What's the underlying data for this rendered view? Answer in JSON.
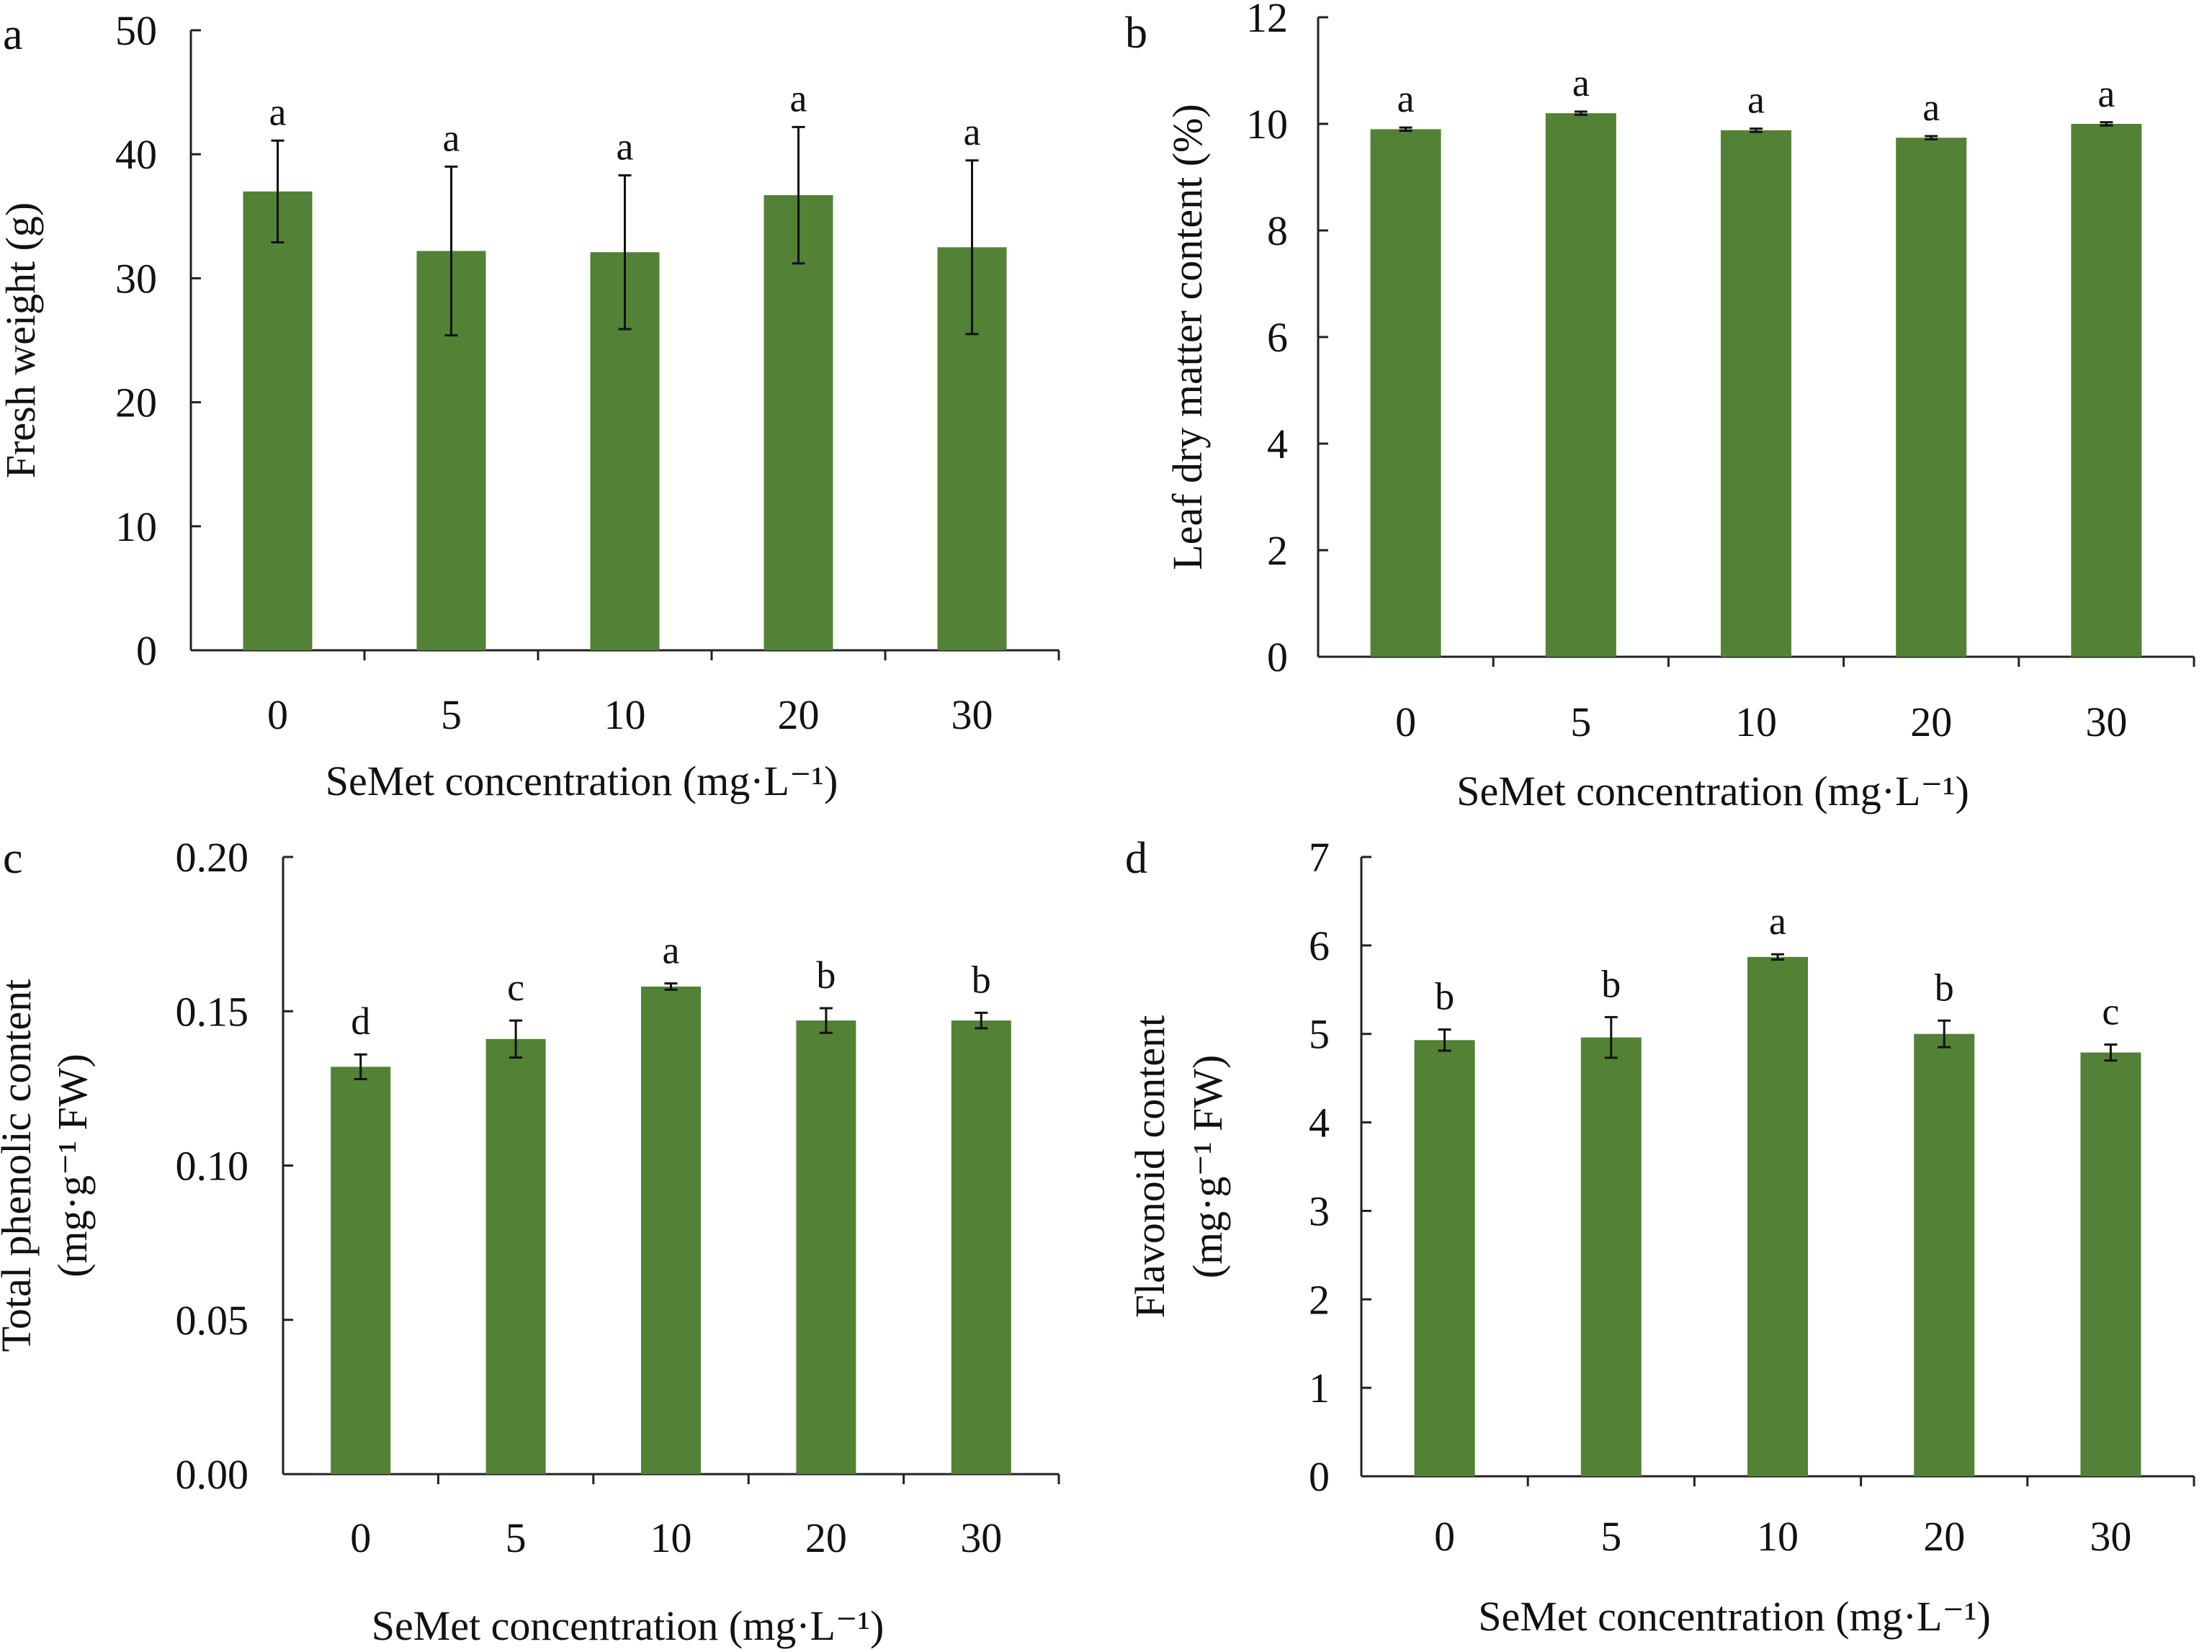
{
  "figure": {
    "bar_color": "#538135",
    "panels": [
      {
        "letter": "a",
        "type": "bar",
        "ylabel_lines": [
          "Fresh weight (g)"
        ],
        "xlabel": "SeMet concentration (mg·L⁻¹)",
        "categories": [
          "0",
          "5",
          "10",
          "20",
          "30"
        ],
        "values": [
          37.0,
          32.2,
          32.1,
          36.7,
          32.5
        ],
        "errors": [
          4.1,
          6.8,
          6.2,
          5.5,
          7.0
        ],
        "significance": [
          "a",
          "a",
          "a",
          "a",
          "a"
        ],
        "ylim": [
          0,
          50
        ],
        "yticks": [
          "0",
          "10",
          "20",
          "30",
          "40",
          "50"
        ]
      },
      {
        "letter": "b",
        "type": "bar",
        "ylabel_lines": [
          "Leaf dry matter content (%)"
        ],
        "xlabel": "SeMet concentration (mg·L⁻¹)",
        "categories": [
          "0",
          "5",
          "10",
          "20",
          "30"
        ],
        "values": [
          9.9,
          10.2,
          9.88,
          9.74,
          10.0
        ],
        "errors": [
          0.03,
          0.03,
          0.03,
          0.03,
          0.03
        ],
        "significance": [
          "a",
          "a",
          "a",
          "a",
          "a"
        ],
        "ylim": [
          0,
          12
        ],
        "yticks": [
          "0",
          "2",
          "4",
          "6",
          "8",
          "10",
          "12"
        ]
      },
      {
        "letter": "c",
        "type": "bar",
        "ylabel_lines": [
          "Total phenolic content",
          "(mg·g⁻¹ FW)"
        ],
        "xlabel": "SeMet concentration (mg·L⁻¹)",
        "categories": [
          "0",
          "5",
          "10",
          "20",
          "30"
        ],
        "values": [
          0.132,
          0.141,
          0.158,
          0.147,
          0.147
        ],
        "errors": [
          0.004,
          0.006,
          0.001,
          0.004,
          0.0025
        ],
        "significance": [
          "d",
          "c",
          "a",
          "b",
          "b"
        ],
        "ylim": [
          0,
          0.2
        ],
        "yticks": [
          "0.00",
          "0.05",
          "0.10",
          "0.15",
          "0.20"
        ]
      },
      {
        "letter": "d",
        "type": "bar",
        "ylabel_lines": [
          "Flavonoid content",
          "(mg·g⁻¹ FW)"
        ],
        "xlabel": "SeMet concentration (mg·L⁻¹)",
        "categories": [
          "0",
          "5",
          "10",
          "20",
          "30"
        ],
        "values": [
          4.93,
          4.96,
          5.87,
          5.0,
          4.79
        ],
        "errors": [
          0.12,
          0.23,
          0.03,
          0.15,
          0.09
        ],
        "significance": [
          "b",
          "b",
          "a",
          "b",
          "c"
        ],
        "ylim": [
          0,
          7
        ],
        "yticks": [
          "0",
          "1",
          "2",
          "3",
          "4",
          "5",
          "6",
          "7"
        ]
      }
    ]
  },
  "chart_data": [
    {
      "type": "bar",
      "panel": "a",
      "categories": [
        "0",
        "5",
        "10",
        "20",
        "30"
      ],
      "values": [
        37.0,
        32.2,
        32.1,
        36.7,
        32.5
      ],
      "errors": [
        4.1,
        6.8,
        6.2,
        5.5,
        7.0
      ],
      "significance": [
        "a",
        "a",
        "a",
        "a",
        "a"
      ],
      "xlabel": "SeMet concentration (mg·L⁻¹)",
      "ylabel": "Fresh weight (g)",
      "ylim": [
        0,
        50
      ]
    },
    {
      "type": "bar",
      "panel": "b",
      "categories": [
        "0",
        "5",
        "10",
        "20",
        "30"
      ],
      "values": [
        9.9,
        10.2,
        9.88,
        9.74,
        10.0
      ],
      "errors": [
        0.03,
        0.03,
        0.03,
        0.03,
        0.03
      ],
      "significance": [
        "a",
        "a",
        "a",
        "a",
        "a"
      ],
      "xlabel": "SeMet concentration (mg·L⁻¹)",
      "ylabel": "Leaf dry matter content (%)",
      "ylim": [
        0,
        12
      ]
    },
    {
      "type": "bar",
      "panel": "c",
      "categories": [
        "0",
        "5",
        "10",
        "20",
        "30"
      ],
      "values": [
        0.132,
        0.141,
        0.158,
        0.147,
        0.147
      ],
      "errors": [
        0.004,
        0.006,
        0.001,
        0.004,
        0.0025
      ],
      "significance": [
        "d",
        "c",
        "a",
        "b",
        "b"
      ],
      "xlabel": "SeMet concentration (mg·L⁻¹)",
      "ylabel": "Total phenolic content (mg·g⁻¹ FW)",
      "ylim": [
        0,
        0.2
      ]
    },
    {
      "type": "bar",
      "panel": "d",
      "categories": [
        "0",
        "5",
        "10",
        "20",
        "30"
      ],
      "values": [
        4.93,
        4.96,
        5.87,
        5.0,
        4.79
      ],
      "errors": [
        0.12,
        0.23,
        0.03,
        0.15,
        0.09
      ],
      "significance": [
        "b",
        "b",
        "a",
        "b",
        "c"
      ],
      "xlabel": "SeMet concentration (mg·L⁻¹)",
      "ylabel": "Flavonoid content (mg·g⁻¹ FW)",
      "ylim": [
        0,
        7
      ]
    }
  ]
}
